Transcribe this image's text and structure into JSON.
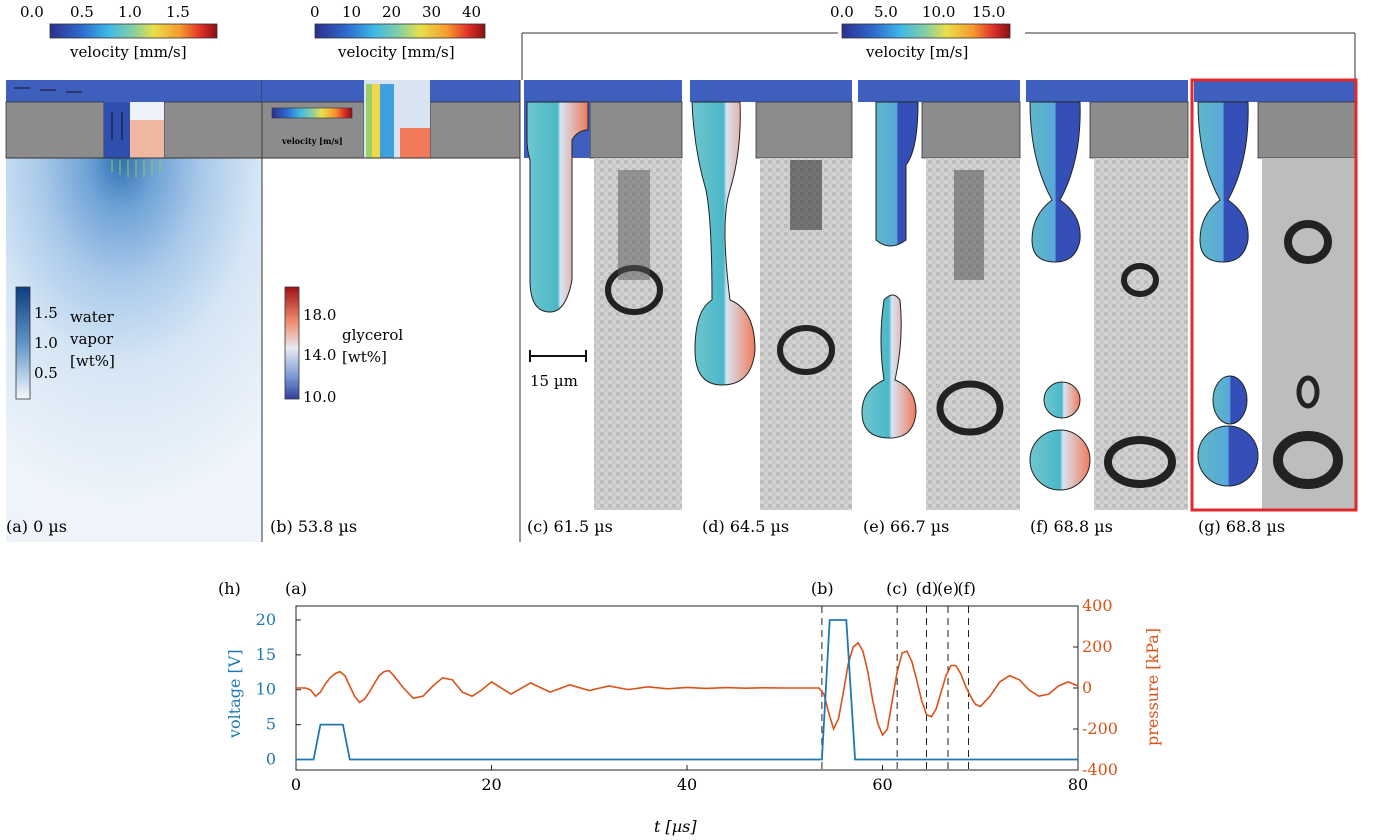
{
  "colorbars": {
    "velocity_small": {
      "ticks": [
        "0.0",
        "0.5",
        "1.0",
        "1.5"
      ],
      "label": "velocity [mm/s]"
    },
    "velocity_mid": {
      "ticks": [
        "0",
        "10",
        "20",
        "30",
        "40"
      ],
      "label": "velocity [mm/s]"
    },
    "velocity_large": {
      "ticks": [
        "0.0",
        "5.0",
        "10.0",
        "15.0"
      ],
      "label": "velocity [m/s]"
    },
    "water_vapor": {
      "ticks": [
        "1.5",
        "1.0",
        "0.5"
      ],
      "label_lines": [
        "water",
        "vapor",
        "[wt%]"
      ]
    },
    "glycerol": {
      "ticks": [
        "18.0",
        "14.0",
        "10.0"
      ],
      "label_lines": [
        "glycerol",
        "[wt%]"
      ]
    },
    "inset_velocity": {
      "label": "velocity [m/s]"
    }
  },
  "scale_bar": {
    "label": "15 µm"
  },
  "panels": [
    {
      "id": "a",
      "caption": "(a) 0 µs"
    },
    {
      "id": "b",
      "caption": "(b) 53.8 µs"
    },
    {
      "id": "c",
      "caption": "(c) 61.5 µs"
    },
    {
      "id": "d",
      "caption": "(d) 64.5 µs"
    },
    {
      "id": "e",
      "caption": "(e) 66.7 µs"
    },
    {
      "id": "f",
      "caption": "(f) 68.8 µs"
    },
    {
      "id": "g",
      "caption": "(g) 68.8 µs"
    }
  ],
  "colors": {
    "voltage": "#1f77b4",
    "pressure": "#d95319",
    "highlight": "#e0282e",
    "nozzle": "#8c8c8c",
    "fluid_top": "#3f5fbf"
  },
  "chart_data": {
    "type": "line",
    "panel_label": "(h)",
    "xlabel": "t [µs]",
    "ylabel_left": "voltage [V]",
    "ylabel_right": "pressure [kPa]",
    "xlim": [
      0,
      80
    ],
    "ylim_left": [
      -1.5,
      22
    ],
    "ylim_right": [
      -400,
      400
    ],
    "x_ticks": [
      "0",
      "20",
      "40",
      "60",
      "80"
    ],
    "y_ticks_left": [
      "0",
      "5",
      "10",
      "15",
      "20"
    ],
    "y_ticks_right": [
      "400",
      "200",
      "0",
      "-200",
      "-400"
    ],
    "markers": [
      {
        "label": "(a)",
        "t": 0
      },
      {
        "label": "(b)",
        "t": 53.8
      },
      {
        "label": "(c)",
        "t": 61.5
      },
      {
        "label": "(d)",
        "t": 64.5
      },
      {
        "label": "(e)",
        "t": 66.7
      },
      {
        "label": "(f)",
        "t": 68.8
      }
    ],
    "series": [
      {
        "name": "voltage",
        "x": [
          0,
          1.8,
          2.5,
          4.8,
          5.5,
          53.8,
          54.6,
          56.3,
          57.2,
          80
        ],
        "y": [
          0,
          0,
          5,
          5,
          0,
          0,
          20,
          20,
          0,
          0
        ]
      },
      {
        "name": "pressure",
        "x": [
          0,
          0.5,
          1,
          1.5,
          2,
          2.5,
          3,
          3.5,
          4,
          4.5,
          5,
          5.5,
          6,
          6.5,
          7,
          7.5,
          8,
          8.5,
          9,
          9.5,
          10,
          11,
          12,
          13,
          14,
          15,
          16,
          17,
          18,
          19,
          20,
          22,
          24,
          26,
          28,
          30,
          32,
          34,
          36,
          38,
          40,
          42,
          44,
          46,
          48,
          50,
          52,
          53.5,
          54,
          54.5,
          55,
          55.5,
          56,
          56.5,
          57,
          57.5,
          58,
          58.5,
          59,
          59.5,
          60,
          60.5,
          61,
          61.5,
          62,
          62.5,
          63,
          63.5,
          64,
          64.5,
          65,
          65.5,
          66,
          66.5,
          67,
          67.5,
          68,
          68.5,
          69,
          69.5,
          70,
          71,
          72,
          73,
          74,
          75,
          76,
          77,
          78,
          79,
          80
        ],
        "y": [
          0,
          0,
          0,
          -10,
          -40,
          -20,
          20,
          50,
          70,
          80,
          60,
          10,
          -40,
          -70,
          -55,
          -20,
          20,
          60,
          80,
          85,
          60,
          0,
          -50,
          -40,
          10,
          50,
          40,
          -20,
          -40,
          -10,
          30,
          -30,
          25,
          -20,
          15,
          -12,
          10,
          -8,
          6,
          -4,
          3,
          -2,
          2,
          -1,
          1,
          0,
          0,
          0,
          -30,
          -120,
          -200,
          -150,
          -20,
          120,
          200,
          220,
          180,
          80,
          -60,
          -170,
          -230,
          -200,
          -60,
          80,
          170,
          180,
          130,
          40,
          -60,
          -130,
          -140,
          -100,
          -20,
          60,
          110,
          110,
          70,
          10,
          -40,
          -80,
          -90,
          -40,
          30,
          60,
          40,
          -10,
          -40,
          -30,
          10,
          30,
          10
        ]
      }
    ]
  }
}
